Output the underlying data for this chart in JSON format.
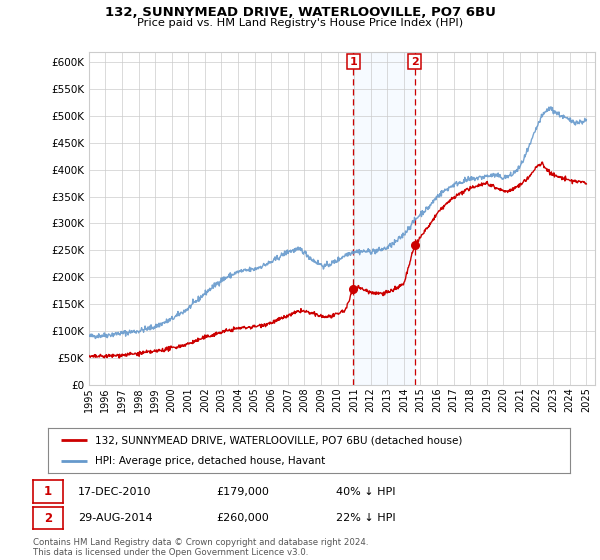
{
  "title1": "132, SUNNYMEAD DRIVE, WATERLOOVILLE, PO7 6BU",
  "title2": "Price paid vs. HM Land Registry's House Price Index (HPI)",
  "ylim": [
    0,
    620000
  ],
  "yticks": [
    0,
    50000,
    100000,
    150000,
    200000,
    250000,
    300000,
    350000,
    400000,
    450000,
    500000,
    550000,
    600000
  ],
  "ytick_labels": [
    "£0",
    "£50K",
    "£100K",
    "£150K",
    "£200K",
    "£250K",
    "£300K",
    "£350K",
    "£400K",
    "£450K",
    "£500K",
    "£550K",
    "£600K"
  ],
  "xlim_start": 1995.0,
  "xlim_end": 2025.5,
  "xticks": [
    1995,
    1996,
    1997,
    1998,
    1999,
    2000,
    2001,
    2002,
    2003,
    2004,
    2005,
    2006,
    2007,
    2008,
    2009,
    2010,
    2011,
    2012,
    2013,
    2014,
    2015,
    2016,
    2017,
    2018,
    2019,
    2020,
    2021,
    2022,
    2023,
    2024,
    2025
  ],
  "transaction1_x": 2010.96,
  "transaction1_y": 179000,
  "transaction2_x": 2014.66,
  "transaction2_y": 260000,
  "sale_color": "#cc0000",
  "hpi_color": "#6699cc",
  "shade_color": "#ddeeff",
  "vline_color": "#cc0000",
  "box_color": "#cc0000",
  "legend_label1": "132, SUNNYMEAD DRIVE, WATERLOOVILLE, PO7 6BU (detached house)",
  "legend_label2": "HPI: Average price, detached house, Havant",
  "note1_num": "1",
  "note1_date": "17-DEC-2010",
  "note1_price": "£179,000",
  "note1_hpi": "40% ↓ HPI",
  "note2_num": "2",
  "note2_date": "29-AUG-2014",
  "note2_price": "£260,000",
  "note2_hpi": "22% ↓ HPI",
  "footer": "Contains HM Land Registry data © Crown copyright and database right 2024.\nThis data is licensed under the Open Government Licence v3.0.",
  "background_color": "#ffffff",
  "grid_color": "#cccccc"
}
